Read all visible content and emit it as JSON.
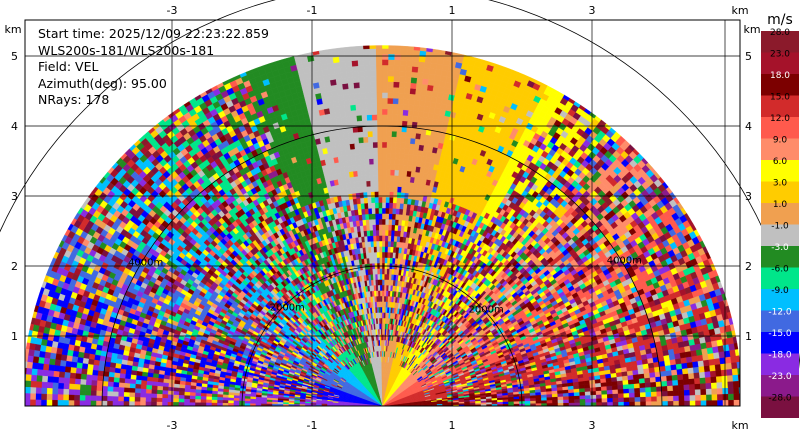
{
  "info": {
    "start_time": "Start time: 2025/12/09 22:23:22.859",
    "instrument": "WLS200s-181/WLS200s-181",
    "field": "Field: VEL",
    "azimuth": "Azimuth(deg): 95.00",
    "nrays": "NRays: 178"
  },
  "chart_data": {
    "type": "heatmap",
    "projection": "RHI half-disk (elevation 0-180 deg)",
    "field": "VEL",
    "unit": "m/s",
    "x_unit": "km",
    "y_unit": "km",
    "x_ticks": [
      "-3",
      "-1",
      "1",
      "3"
    ],
    "x_tick_values": [
      -3,
      -1,
      1,
      3
    ],
    "y_ticks": [
      "1",
      "2",
      "3",
      "4",
      "5"
    ],
    "y_tick_values": [
      1,
      2,
      3,
      4,
      5
    ],
    "xlim": [
      -5.2,
      5.2
    ],
    "ylim": [
      0,
      5.9
    ],
    "grid": true,
    "max_range_km": 5.15,
    "range_rings_km": [
      2,
      4,
      6
    ],
    "range_ring_labels": [
      "2000m",
      "4000m",
      "6000m"
    ],
    "colorbar": {
      "title": "m/s",
      "labels": [
        "28.0",
        "23.0",
        "18.0",
        "15.0",
        "12.0",
        "9.0",
        "6.0",
        "3.0",
        "1.0",
        "-1.0",
        "-3.0",
        "-6.0",
        "-9.0",
        "-12.0",
        "-15.0",
        "-18.0",
        "-23.0",
        "-28.0"
      ],
      "colors": [
        "#8b1a2b",
        "#a5122a",
        "#7c0000",
        "#d22b2b",
        "#ff5a4d",
        "#ff8c6a",
        "#ffff00",
        "#ffcc00",
        "#f0a050",
        "#c0c0c0",
        "#228b22",
        "#00e68a",
        "#00bfff",
        "#4169e1",
        "#0000ff",
        "#8a2be2",
        "#8b1a8b",
        "#7a1040"
      ],
      "label_colors": [
        "#000",
        "#000",
        "#fff",
        "#000",
        "#000",
        "#000",
        "#000",
        "#000",
        "#000",
        "#000",
        "#fff",
        "#000",
        "#000",
        "#fff",
        "#fff",
        "#fff",
        "#fff",
        "#000"
      ]
    }
  }
}
